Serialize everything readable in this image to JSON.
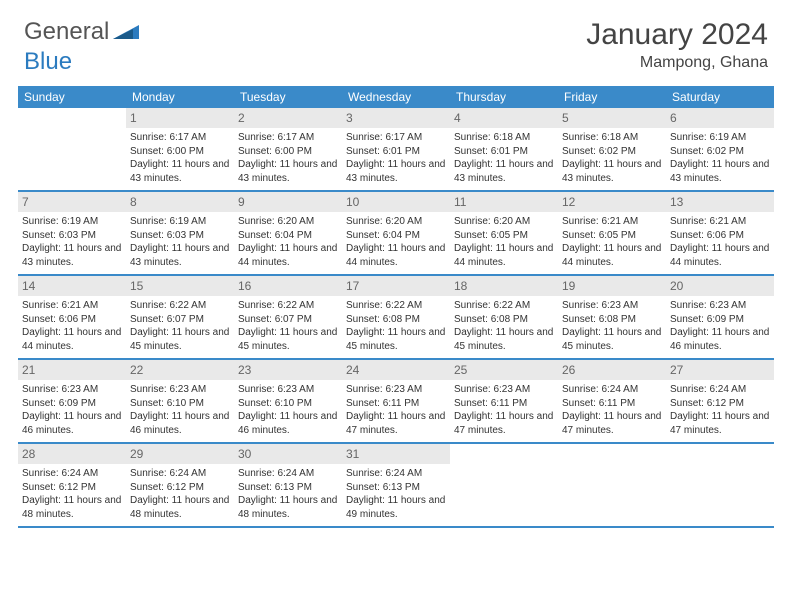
{
  "logo": {
    "text_a": "General",
    "text_b": "Blue"
  },
  "header": {
    "month": "January 2024",
    "location": "Mampong, Ghana"
  },
  "colors": {
    "header_bg": "#3a8ac9",
    "header_text": "#ffffff",
    "daynum_bg": "#e9e9e9",
    "daynum_text": "#666666",
    "body_text": "#333333",
    "week_border": "#3a8ac9"
  },
  "weekdays": [
    "Sunday",
    "Monday",
    "Tuesday",
    "Wednesday",
    "Thursday",
    "Friday",
    "Saturday"
  ],
  "weeks": [
    [
      {
        "num": "",
        "lines": []
      },
      {
        "num": "1",
        "lines": [
          "Sunrise: 6:17 AM",
          "Sunset: 6:00 PM",
          "Daylight: 11 hours and 43 minutes."
        ]
      },
      {
        "num": "2",
        "lines": [
          "Sunrise: 6:17 AM",
          "Sunset: 6:00 PM",
          "Daylight: 11 hours and 43 minutes."
        ]
      },
      {
        "num": "3",
        "lines": [
          "Sunrise: 6:17 AM",
          "Sunset: 6:01 PM",
          "Daylight: 11 hours and 43 minutes."
        ]
      },
      {
        "num": "4",
        "lines": [
          "Sunrise: 6:18 AM",
          "Sunset: 6:01 PM",
          "Daylight: 11 hours and 43 minutes."
        ]
      },
      {
        "num": "5",
        "lines": [
          "Sunrise: 6:18 AM",
          "Sunset: 6:02 PM",
          "Daylight: 11 hours and 43 minutes."
        ]
      },
      {
        "num": "6",
        "lines": [
          "Sunrise: 6:19 AM",
          "Sunset: 6:02 PM",
          "Daylight: 11 hours and 43 minutes."
        ]
      }
    ],
    [
      {
        "num": "7",
        "lines": [
          "Sunrise: 6:19 AM",
          "Sunset: 6:03 PM",
          "Daylight: 11 hours and 43 minutes."
        ]
      },
      {
        "num": "8",
        "lines": [
          "Sunrise: 6:19 AM",
          "Sunset: 6:03 PM",
          "Daylight: 11 hours and 43 minutes."
        ]
      },
      {
        "num": "9",
        "lines": [
          "Sunrise: 6:20 AM",
          "Sunset: 6:04 PM",
          "Daylight: 11 hours and 44 minutes."
        ]
      },
      {
        "num": "10",
        "lines": [
          "Sunrise: 6:20 AM",
          "Sunset: 6:04 PM",
          "Daylight: 11 hours and 44 minutes."
        ]
      },
      {
        "num": "11",
        "lines": [
          "Sunrise: 6:20 AM",
          "Sunset: 6:05 PM",
          "Daylight: 11 hours and 44 minutes."
        ]
      },
      {
        "num": "12",
        "lines": [
          "Sunrise: 6:21 AM",
          "Sunset: 6:05 PM",
          "Daylight: 11 hours and 44 minutes."
        ]
      },
      {
        "num": "13",
        "lines": [
          "Sunrise: 6:21 AM",
          "Sunset: 6:06 PM",
          "Daylight: 11 hours and 44 minutes."
        ]
      }
    ],
    [
      {
        "num": "14",
        "lines": [
          "Sunrise: 6:21 AM",
          "Sunset: 6:06 PM",
          "Daylight: 11 hours and 44 minutes."
        ]
      },
      {
        "num": "15",
        "lines": [
          "Sunrise: 6:22 AM",
          "Sunset: 6:07 PM",
          "Daylight: 11 hours and 45 minutes."
        ]
      },
      {
        "num": "16",
        "lines": [
          "Sunrise: 6:22 AM",
          "Sunset: 6:07 PM",
          "Daylight: 11 hours and 45 minutes."
        ]
      },
      {
        "num": "17",
        "lines": [
          "Sunrise: 6:22 AM",
          "Sunset: 6:08 PM",
          "Daylight: 11 hours and 45 minutes."
        ]
      },
      {
        "num": "18",
        "lines": [
          "Sunrise: 6:22 AM",
          "Sunset: 6:08 PM",
          "Daylight: 11 hours and 45 minutes."
        ]
      },
      {
        "num": "19",
        "lines": [
          "Sunrise: 6:23 AM",
          "Sunset: 6:08 PM",
          "Daylight: 11 hours and 45 minutes."
        ]
      },
      {
        "num": "20",
        "lines": [
          "Sunrise: 6:23 AM",
          "Sunset: 6:09 PM",
          "Daylight: 11 hours and 46 minutes."
        ]
      }
    ],
    [
      {
        "num": "21",
        "lines": [
          "Sunrise: 6:23 AM",
          "Sunset: 6:09 PM",
          "Daylight: 11 hours and 46 minutes."
        ]
      },
      {
        "num": "22",
        "lines": [
          "Sunrise: 6:23 AM",
          "Sunset: 6:10 PM",
          "Daylight: 11 hours and 46 minutes."
        ]
      },
      {
        "num": "23",
        "lines": [
          "Sunrise: 6:23 AM",
          "Sunset: 6:10 PM",
          "Daylight: 11 hours and 46 minutes."
        ]
      },
      {
        "num": "24",
        "lines": [
          "Sunrise: 6:23 AM",
          "Sunset: 6:11 PM",
          "Daylight: 11 hours and 47 minutes."
        ]
      },
      {
        "num": "25",
        "lines": [
          "Sunrise: 6:23 AM",
          "Sunset: 6:11 PM",
          "Daylight: 11 hours and 47 minutes."
        ]
      },
      {
        "num": "26",
        "lines": [
          "Sunrise: 6:24 AM",
          "Sunset: 6:11 PM",
          "Daylight: 11 hours and 47 minutes."
        ]
      },
      {
        "num": "27",
        "lines": [
          "Sunrise: 6:24 AM",
          "Sunset: 6:12 PM",
          "Daylight: 11 hours and 47 minutes."
        ]
      }
    ],
    [
      {
        "num": "28",
        "lines": [
          "Sunrise: 6:24 AM",
          "Sunset: 6:12 PM",
          "Daylight: 11 hours and 48 minutes."
        ]
      },
      {
        "num": "29",
        "lines": [
          "Sunrise: 6:24 AM",
          "Sunset: 6:12 PM",
          "Daylight: 11 hours and 48 minutes."
        ]
      },
      {
        "num": "30",
        "lines": [
          "Sunrise: 6:24 AM",
          "Sunset: 6:13 PM",
          "Daylight: 11 hours and 48 minutes."
        ]
      },
      {
        "num": "31",
        "lines": [
          "Sunrise: 6:24 AM",
          "Sunset: 6:13 PM",
          "Daylight: 11 hours and 49 minutes."
        ]
      },
      {
        "num": "",
        "lines": []
      },
      {
        "num": "",
        "lines": []
      },
      {
        "num": "",
        "lines": []
      }
    ]
  ]
}
